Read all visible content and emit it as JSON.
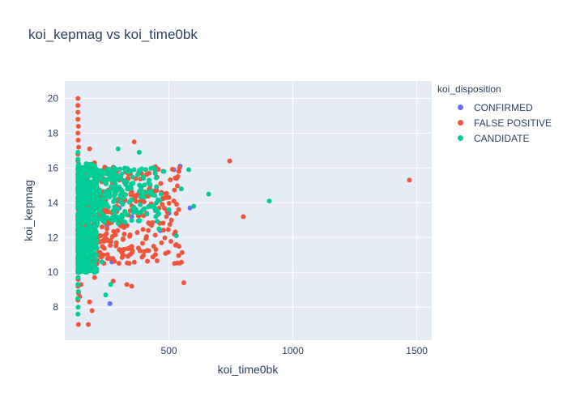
{
  "chart_data": {
    "type": "scatter",
    "title": "koi_kepmag vs koi_time0bk",
    "xlabel": "koi_time0bk",
    "ylabel": "koi_kepmag",
    "xlim": [
      80,
      1560
    ],
    "ylim": [
      6.1,
      21.0
    ],
    "x_ticks": [
      500,
      1000,
      1500
    ],
    "y_ticks": [
      8,
      10,
      12,
      14,
      16,
      18,
      20
    ],
    "grid": true,
    "legend_title": "koi_disposition",
    "legend_position": "top-right",
    "series": [
      {
        "name": "CONFIRMED",
        "color": "#636efa",
        "points": [
          [
            135,
            15.3
          ],
          [
            135,
            13.6
          ],
          [
            133,
            13.0
          ],
          [
            133,
            11.3
          ],
          [
            133,
            10.5
          ],
          [
            134,
            9.6
          ],
          [
            140,
            14.5
          ],
          [
            145,
            12.8
          ],
          [
            150,
            13.9
          ],
          [
            160,
            12.4
          ],
          [
            170,
            14.8
          ],
          [
            180,
            11.9
          ],
          [
            200,
            13.3
          ],
          [
            220,
            12.1
          ],
          [
            250,
            12.7
          ],
          [
            262,
            8.2
          ],
          [
            270,
            10.6
          ],
          [
            300,
            13.7
          ],
          [
            320,
            14.1
          ],
          [
            350,
            13.2
          ],
          [
            380,
            14.6
          ],
          [
            420,
            13.8
          ],
          [
            465,
            12.4
          ],
          [
            500,
            13.4
          ],
          [
            520,
            15.9
          ],
          [
            545,
            16.1
          ],
          [
            585,
            13.7
          ]
        ]
      },
      {
        "name": "FALSE POSITIVE",
        "color": "#ef553b",
        "points": [
          [
            133,
            20.0
          ],
          [
            133,
            19.6
          ],
          [
            133,
            19.2
          ],
          [
            133,
            18.8
          ],
          [
            135,
            18.4
          ],
          [
            133,
            18.0
          ],
          [
            134,
            17.6
          ],
          [
            136,
            17.2
          ],
          [
            133,
            16.8
          ],
          [
            133,
            16.4
          ],
          [
            134,
            16.0
          ],
          [
            133,
            15.6
          ],
          [
            135,
            15.2
          ],
          [
            133,
            14.8
          ],
          [
            136,
            14.4
          ],
          [
            133,
            14.0
          ],
          [
            134,
            13.6
          ],
          [
            133,
            13.2
          ],
          [
            135,
            12.8
          ],
          [
            133,
            12.4
          ],
          [
            134,
            12.0
          ],
          [
            133,
            11.6
          ],
          [
            136,
            11.2
          ],
          [
            133,
            10.8
          ],
          [
            135,
            10.4
          ],
          [
            133,
            10.0
          ],
          [
            134,
            9.6
          ],
          [
            133,
            9.2
          ],
          [
            135,
            8.8
          ],
          [
            133,
            8.4
          ],
          [
            135,
            7.0
          ],
          [
            140,
            8.6
          ],
          [
            145,
            9.3
          ],
          [
            150,
            10.2
          ],
          [
            160,
            11.2
          ],
          [
            170,
            12.3
          ],
          [
            175,
            7.0
          ],
          [
            180,
            8.3
          ],
          [
            190,
            7.8
          ],
          [
            200,
            9.7
          ],
          [
            210,
            10.5
          ],
          [
            225,
            12.1
          ],
          [
            235,
            13.0
          ],
          [
            250,
            12.5
          ],
          [
            262,
            10.8
          ],
          [
            275,
            9.5
          ],
          [
            290,
            13.5
          ],
          [
            300,
            11.3
          ],
          [
            320,
            12.2
          ],
          [
            330,
            9.3
          ],
          [
            350,
            9.2
          ],
          [
            360,
            17.5
          ],
          [
            380,
            14.4
          ],
          [
            400,
            11.2
          ],
          [
            410,
            13.4
          ],
          [
            430,
            12.7
          ],
          [
            450,
            14.9
          ],
          [
            470,
            11.7
          ],
          [
            490,
            13.2
          ],
          [
            510,
            13.0
          ],
          [
            520,
            14.1
          ],
          [
            540,
            15.8
          ],
          [
            560,
            9.4
          ],
          [
            180,
            17.1
          ],
          [
            200,
            16.3
          ],
          [
            260,
            15.6
          ],
          [
            300,
            15.3
          ],
          [
            340,
            14.8
          ],
          [
            420,
            15.7
          ],
          [
            470,
            14.6
          ],
          [
            500,
            14.3
          ],
          [
            530,
            11.6
          ],
          [
            745,
            16.4
          ],
          [
            800,
            13.2
          ],
          [
            1470,
            15.3
          ]
        ]
      },
      {
        "name": "CANDIDATE",
        "color": "#00cc96",
        "points": [
          [
            133,
            16.9
          ],
          [
            133,
            16.5
          ],
          [
            134,
            16.1
          ],
          [
            133,
            15.7
          ],
          [
            135,
            15.3
          ],
          [
            133,
            14.9
          ],
          [
            134,
            14.5
          ],
          [
            133,
            14.1
          ],
          [
            136,
            13.7
          ],
          [
            133,
            13.3
          ],
          [
            134,
            12.9
          ],
          [
            133,
            12.5
          ],
          [
            135,
            12.1
          ],
          [
            133,
            11.7
          ],
          [
            134,
            11.3
          ],
          [
            133,
            10.9
          ],
          [
            135,
            10.5
          ],
          [
            133,
            10.1
          ],
          [
            134,
            9.7
          ],
          [
            133,
            9.3
          ],
          [
            135,
            8.9
          ],
          [
            133,
            8.5
          ],
          [
            134,
            8.0
          ],
          [
            133,
            7.6
          ],
          [
            140,
            13.9
          ],
          [
            145,
            15.2
          ],
          [
            150,
            14.6
          ],
          [
            155,
            13.1
          ],
          [
            160,
            15.8
          ],
          [
            165,
            12.2
          ],
          [
            170,
            14.3
          ],
          [
            175,
            15.0
          ],
          [
            180,
            13.6
          ],
          [
            190,
            14.9
          ],
          [
            200,
            12.8
          ],
          [
            210,
            15.5
          ],
          [
            220,
            14.1
          ],
          [
            230,
            10.6
          ],
          [
            240,
            15.2
          ],
          [
            245,
            8.7
          ],
          [
            250,
            13.9
          ],
          [
            265,
            9.3
          ],
          [
            270,
            15.7
          ],
          [
            280,
            14.4
          ],
          [
            295,
            17.1
          ],
          [
            300,
            14.9
          ],
          [
            310,
            13.3
          ],
          [
            330,
            15.2
          ],
          [
            345,
            14.1
          ],
          [
            360,
            15.9
          ],
          [
            380,
            16.9
          ],
          [
            400,
            14.6
          ],
          [
            420,
            15.3
          ],
          [
            440,
            16.0
          ],
          [
            450,
            14.0
          ],
          [
            460,
            12.5
          ],
          [
            480,
            15.8
          ],
          [
            500,
            13.6
          ],
          [
            530,
            12.1
          ],
          [
            550,
            14.8
          ],
          [
            580,
            15.9
          ],
          [
            600,
            13.8
          ],
          [
            660,
            14.5
          ],
          [
            905,
            14.1
          ]
        ]
      }
    ]
  }
}
